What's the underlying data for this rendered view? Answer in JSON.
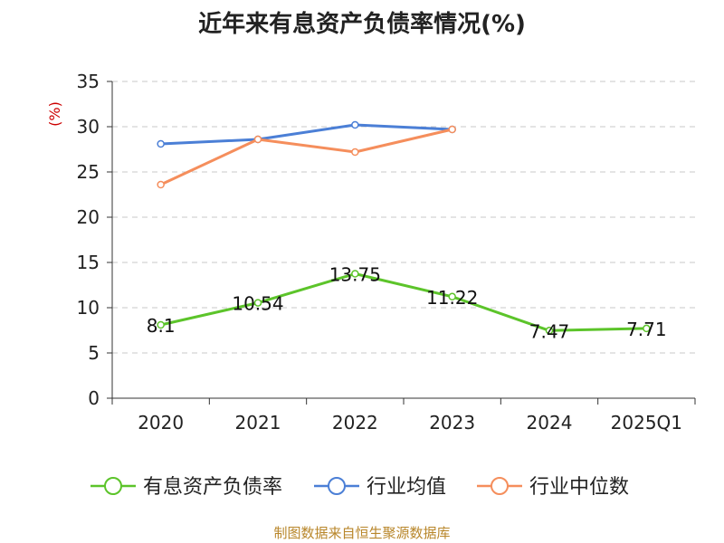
{
  "chart_data": {
    "type": "line",
    "title": "近年来有息资产负债率情况(%)",
    "ylabel": "(%)",
    "xlabel": "",
    "categories": [
      "2020",
      "2021",
      "2022",
      "2023",
      "2024",
      "2025Q1"
    ],
    "ylim": [
      0,
      35
    ],
    "yticks": [
      "0",
      "5",
      "10",
      "15",
      "20",
      "25",
      "30",
      "35"
    ],
    "grid": "horizontal-dashed",
    "legend_position": "bottom",
    "series": [
      {
        "name": "有息资产负债率",
        "color": "#5cc42a",
        "values": [
          8.1,
          10.54,
          13.75,
          11.22,
          7.47,
          7.71
        ],
        "labels": [
          "8.1",
          "10.54",
          "13.75",
          "11.22",
          "7.47",
          "7.71"
        ]
      },
      {
        "name": "行业均值",
        "color": "#4b7fd6",
        "values": [
          28.1,
          28.6,
          30.2,
          29.7,
          null,
          null
        ]
      },
      {
        "name": "行业中位数",
        "color": "#f58e5c",
        "values": [
          23.6,
          28.6,
          27.2,
          29.7,
          null,
          null
        ]
      }
    ]
  },
  "source": "制图数据来自恒生聚源数据库"
}
